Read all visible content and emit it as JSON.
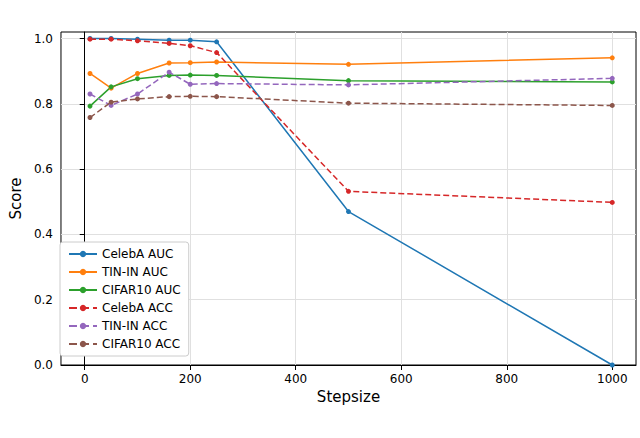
{
  "chart_data": {
    "type": "line",
    "x_label": "Stepsize",
    "y_label": "Score",
    "x": [
      10,
      50,
      100,
      160,
      200,
      250,
      500,
      1000
    ],
    "series": [
      {
        "name": "CelebA AUC",
        "color": "#1f77b4",
        "line_style": "solid",
        "marker": "circle",
        "values": [
          1.0,
          1.0,
          0.998,
          0.995,
          0.995,
          0.99,
          0.47,
          0.0
        ]
      },
      {
        "name": "TIN-IN AUC",
        "color": "#ff7f0e",
        "line_style": "solid",
        "marker": "circle",
        "values": [
          0.893,
          0.848,
          0.893,
          0.925,
          0.926,
          0.928,
          0.921,
          0.941
        ]
      },
      {
        "name": "CIFAR10 AUC",
        "color": "#2ca02c",
        "line_style": "solid",
        "marker": "circle",
        "values": [
          0.793,
          0.852,
          0.877,
          0.887,
          0.888,
          0.887,
          0.871,
          0.867
        ]
      },
      {
        "name": "CelebA ACC",
        "color": "#d62728",
        "line_style": "dashed",
        "marker": "circle",
        "values": [
          0.998,
          0.998,
          0.993,
          0.985,
          0.978,
          0.957,
          0.532,
          0.498
        ]
      },
      {
        "name": "TIN-IN ACC",
        "color": "#9467bd",
        "line_style": "dashed",
        "marker": "circle",
        "values": [
          0.83,
          0.795,
          0.83,
          0.897,
          0.86,
          0.862,
          0.858,
          0.878
        ]
      },
      {
        "name": "CIFAR10 ACC",
        "color": "#8c564b",
        "line_style": "dashed",
        "marker": "circle",
        "values": [
          0.758,
          0.805,
          0.815,
          0.822,
          0.823,
          0.822,
          0.802,
          0.795
        ]
      }
    ],
    "xlim": [
      -45,
      1045
    ],
    "xticks": [
      0,
      200,
      400,
      600,
      800,
      1000
    ],
    "ylim": [
      0,
      1.02
    ],
    "yticks": [
      {
        "value": 0,
        "label": "0.0"
      },
      {
        "value": 0.2,
        "label": "0.2"
      },
      {
        "value": 0.4,
        "label": "0.4"
      },
      {
        "value": 0.6,
        "label": "0.6"
      },
      {
        "value": 0.8,
        "label": "0.8"
      },
      {
        "value": 1.0,
        "label": "1.0"
      }
    ],
    "grid": true,
    "legend": "lower left"
  }
}
